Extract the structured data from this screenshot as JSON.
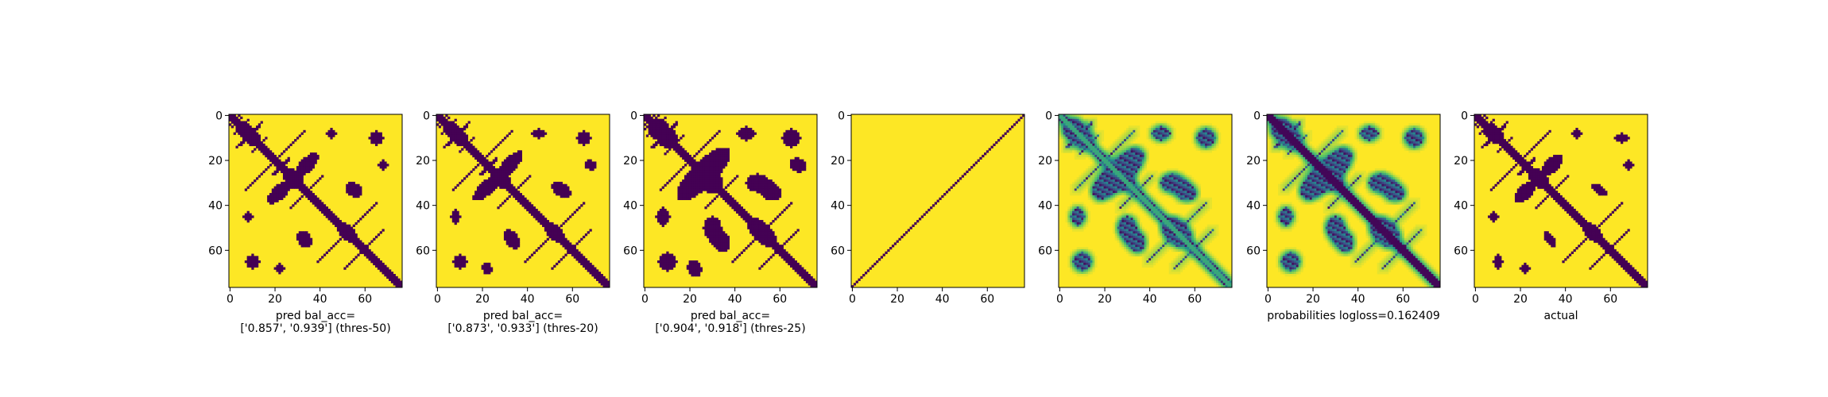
{
  "figure": {
    "colors": {
      "dark": "#440154",
      "yellow": "#fde725",
      "mid_green": "#21918c",
      "light_green": "#5ec962"
    }
  },
  "chart_data": [
    {
      "type": "heatmap",
      "id": "pred-50",
      "label_lines": [
        "pred bal_acc=",
        "['0.857', '0.939'] (thres-50)"
      ],
      "n": 77,
      "style": "binary",
      "xticks": [
        0,
        20,
        40,
        60
      ],
      "yticks": [
        0,
        20,
        40,
        60
      ],
      "xlim": [
        0,
        77
      ],
      "ylim": [
        77,
        0
      ],
      "colormap": "viridis-binary",
      "offdiag": [
        [
          9,
          -0.5,
          5
        ],
        [
          13,
          0.4,
          4
        ],
        [
          23,
          -0.6,
          4
        ],
        [
          5,
          2.5,
          4
        ],
        [
          3,
          -1.8,
          3
        ]
      ],
      "blobs": [
        [
          34,
          22,
          7,
          3,
          -0.8
        ],
        [
          55,
          33,
          4,
          3,
          0.6
        ],
        [
          45,
          8,
          2,
          2,
          0
        ],
        [
          65,
          10,
          3,
          3,
          0
        ],
        [
          68,
          22,
          2,
          2,
          0.3
        ],
        [
          52,
          52,
          6,
          3,
          0.8
        ],
        [
          8,
          8,
          6,
          3,
          0.5
        ],
        [
          28,
          28,
          5,
          3,
          0.4
        ]
      ]
    },
    {
      "type": "heatmap",
      "id": "pred-20",
      "label_lines": [
        "pred bal_acc=",
        "['0.873', '0.933'] (thres-20)"
      ],
      "n": 77,
      "style": "binary",
      "xticks": [
        0,
        20,
        40,
        60
      ],
      "yticks": [
        0,
        20,
        40,
        60
      ],
      "xlim": [
        0,
        77
      ],
      "ylim": [
        77,
        0
      ],
      "colormap": "viridis-binary",
      "offdiag": [
        [
          9,
          -0.5,
          5
        ],
        [
          13,
          0.4,
          4
        ],
        [
          23,
          -0.6,
          4
        ],
        [
          5,
          2.5,
          4
        ],
        [
          3,
          -1.8,
          3
        ]
      ],
      "blobs": [
        [
          32,
          22,
          8,
          3,
          -0.8
        ],
        [
          55,
          33,
          5,
          3,
          0.6
        ],
        [
          45,
          8,
          3,
          2,
          0
        ],
        [
          65,
          10,
          3,
          3,
          0
        ],
        [
          68,
          22,
          3,
          2,
          0.3
        ],
        [
          52,
          52,
          6,
          3,
          0.8
        ],
        [
          8,
          8,
          6,
          3,
          0.5
        ],
        [
          28,
          28,
          5,
          3,
          0.4
        ]
      ]
    },
    {
      "type": "heatmap",
      "id": "pred-25",
      "label_lines": [
        "pred bal_acc=",
        "['0.904', '0.918'] (thres-25)"
      ],
      "n": 77,
      "style": "binary",
      "xticks": [
        0,
        20,
        40,
        60
      ],
      "yticks": [
        0,
        20,
        40,
        60
      ],
      "xlim": [
        0,
        77
      ],
      "ylim": [
        77,
        0
      ],
      "colormap": "viridis-binary",
      "offdiag": [
        [
          9,
          -0.5,
          6
        ],
        [
          13,
          0.4,
          5
        ],
        [
          23,
          -0.6,
          5
        ],
        [
          5,
          2.5,
          5
        ],
        [
          3,
          -1.8,
          4
        ]
      ],
      "blobs": [
        [
          30,
          22,
          10,
          5,
          -0.8
        ],
        [
          55,
          33,
          6,
          4,
          0.6
        ],
        [
          45,
          8,
          4,
          3,
          0
        ],
        [
          65,
          10,
          4,
          4,
          0
        ],
        [
          68,
          22,
          4,
          3,
          0.3
        ],
        [
          52,
          52,
          8,
          4,
          0.8
        ],
        [
          8,
          8,
          7,
          4,
          0.5
        ],
        [
          28,
          28,
          7,
          4,
          0.4
        ],
        [
          50,
          30,
          5,
          4,
          0
        ]
      ]
    },
    {
      "type": "heatmap",
      "id": "diagonal-line",
      "label_lines": [],
      "n": 77,
      "style": "line",
      "xticks": [
        0,
        20,
        40,
        60
      ],
      "yticks": [
        0,
        20,
        40,
        60
      ],
      "xlim": [
        0,
        77
      ],
      "ylim": [
        77,
        0
      ],
      "colormap": "viridis-binary"
    },
    {
      "type": "heatmap",
      "id": "probabilities-a",
      "label_lines": [],
      "n": 77,
      "style": "prob",
      "xticks": [
        0,
        20,
        40,
        60
      ],
      "yticks": [
        0,
        20,
        40,
        60
      ],
      "xlim": [
        0,
        77
      ],
      "ylim": [
        77,
        0
      ],
      "colormap": "viridis"
    },
    {
      "type": "heatmap",
      "id": "probabilities-b",
      "label_lines": [
        "probabilities logloss=0.162409"
      ],
      "n": 77,
      "style": "prob2",
      "xticks": [
        0,
        20,
        40,
        60
      ],
      "yticks": [
        0,
        20,
        40,
        60
      ],
      "xlim": [
        0,
        77
      ],
      "ylim": [
        77,
        0
      ],
      "colormap": "viridis"
    },
    {
      "type": "heatmap",
      "id": "actual",
      "label_lines": [
        "actual"
      ],
      "n": 77,
      "style": "binary",
      "xticks": [
        0,
        20,
        40,
        60
      ],
      "yticks": [
        0,
        20,
        40,
        60
      ],
      "xlim": [
        0,
        77
      ],
      "ylim": [
        77,
        0
      ],
      "colormap": "viridis-binary",
      "offdiag": [
        [
          9,
          -0.5,
          5
        ],
        [
          13,
          0.4,
          4
        ],
        [
          23,
          -0.6,
          4
        ],
        [
          5,
          2.5,
          4
        ],
        [
          3,
          -1.8,
          3
        ]
      ],
      "blobs": [
        [
          34,
          22,
          6,
          3,
          -0.8
        ],
        [
          55,
          33,
          4,
          2,
          0.6
        ],
        [
          45,
          8,
          2,
          2,
          0
        ],
        [
          65,
          10,
          3,
          2,
          0
        ],
        [
          68,
          22,
          2,
          2,
          0.3
        ],
        [
          52,
          52,
          5,
          3,
          0.8
        ],
        [
          8,
          8,
          5,
          3,
          0.5
        ],
        [
          28,
          28,
          5,
          3,
          0.4
        ]
      ]
    }
  ]
}
